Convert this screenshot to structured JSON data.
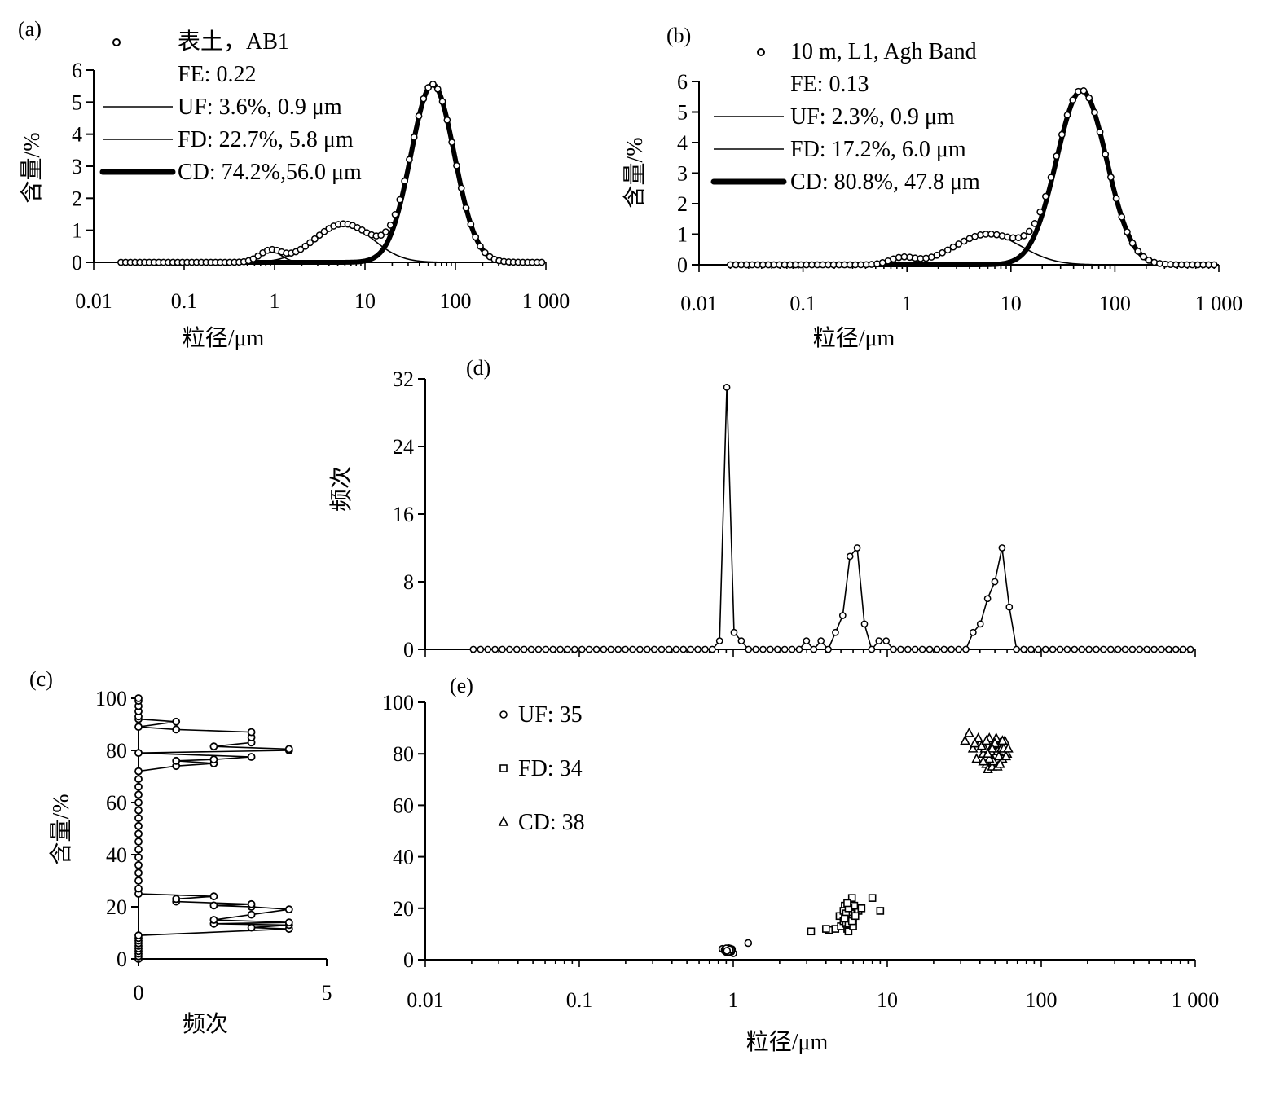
{
  "chart_data": [
    {
      "id": "a",
      "type": "line",
      "panel_label": "(a)",
      "xscale": "log",
      "xlim": [
        0.01,
        1000
      ],
      "ylim": [
        0,
        6
      ],
      "xlabel": "粒径/μm",
      "ylabel": "含量/%",
      "xticks": [
        0.01,
        0.1,
        1,
        10,
        100,
        1000
      ],
      "xtick_labels": [
        "0.01",
        "0.1",
        "1",
        "10",
        "100",
        "1 000"
      ],
      "yticks": [
        0,
        1,
        2,
        3,
        4,
        5,
        6
      ],
      "ytick_labels": [
        "0",
        "1",
        "2",
        "3",
        "4",
        "5",
        "6"
      ],
      "legend": {
        "position": "top-left",
        "entries": [
          {
            "text": "表土，AB1",
            "marker": "circle"
          },
          {
            "text": "FE: 0.22",
            "marker": "none"
          },
          {
            "text": "UF: 3.6%,  0.9 μm",
            "marker": "line"
          },
          {
            "text": "FD: 22.7%,  5.8 μm",
            "marker": "line"
          },
          {
            "text": "CD:  74.2%,56.0 μm",
            "marker": "thick-line"
          }
        ]
      },
      "series": [
        {
          "name": "UF",
          "component": "lognormal",
          "amplitude": 0.35,
          "mode_um": 0.9,
          "sigma_log10": 0.12
        },
        {
          "name": "FD",
          "component": "lognormal",
          "amplitude": 1.2,
          "mode_um": 5.8,
          "sigma_log10": 0.32
        },
        {
          "name": "CD",
          "component": "lognormal",
          "amplitude": 5.55,
          "mode_um": 56.0,
          "sigma_log10": 0.24
        },
        {
          "name": "表土，AB1",
          "component": "measured-sum-of-components",
          "x_range_um": [
            0.02,
            900
          ],
          "points": 90
        }
      ]
    },
    {
      "id": "b",
      "type": "line",
      "panel_label": "(b)",
      "xscale": "log",
      "xlim": [
        0.01,
        1000
      ],
      "ylim": [
        0,
        6
      ],
      "xlabel": "粒径/μm",
      "ylabel": "含量/%",
      "xticks": [
        0.01,
        0.1,
        1,
        10,
        100,
        1000
      ],
      "xtick_labels": [
        "0.01",
        "0.1",
        "1",
        "10",
        "100",
        "1 000"
      ],
      "yticks": [
        0,
        1,
        2,
        3,
        4,
        5,
        6
      ],
      "ytick_labels": [
        "0",
        "1",
        "2",
        "3",
        "4",
        "5",
        "6"
      ],
      "legend": {
        "position": "top-left",
        "entries": [
          {
            "text": "10 m, L1, Agh Band",
            "marker": "circle"
          },
          {
            "text": "FE: 0.13",
            "marker": "none"
          },
          {
            "text": "UF:  2.3%,  0.9  μm",
            "marker": "line"
          },
          {
            "text": "FD:  17.2%,  6.0 μm",
            "marker": "line"
          },
          {
            "text": "CD:  80.8%,  47.8 μm",
            "marker": "thick-line"
          }
        ]
      },
      "series": [
        {
          "name": "UF",
          "component": "lognormal",
          "amplitude": 0.22,
          "mode_um": 0.9,
          "sigma_log10": 0.12
        },
        {
          "name": "FD",
          "component": "lognormal",
          "amplitude": 1.0,
          "mode_um": 6.0,
          "sigma_log10": 0.32
        },
        {
          "name": "CD",
          "component": "lognormal",
          "amplitude": 5.7,
          "mode_um": 47.8,
          "sigma_log10": 0.24
        },
        {
          "name": "10 m, L1, Agh Band",
          "component": "measured-sum-of-components",
          "x_range_um": [
            0.02,
            900
          ],
          "points": 90
        }
      ]
    },
    {
      "id": "c",
      "type": "line",
      "panel_label": "(c)",
      "xlim": [
        0,
        5
      ],
      "ylim": [
        0,
        100
      ],
      "xlabel": "频次",
      "ylabel": "含量/%",
      "xticks": [
        0,
        5
      ],
      "xtick_labels": [
        "0",
        "5"
      ],
      "yticks": [
        0,
        20,
        40,
        60,
        80,
        100
      ],
      "ytick_labels": [
        "0",
        "20",
        "40",
        "60",
        "80",
        "100"
      ],
      "points": [
        [
          0,
          0
        ],
        [
          0,
          1
        ],
        [
          0,
          2
        ],
        [
          0,
          3
        ],
        [
          0,
          4
        ],
        [
          0,
          5
        ],
        [
          0,
          6
        ],
        [
          0,
          7
        ],
        [
          0,
          8
        ],
        [
          0,
          9
        ],
        [
          4,
          11.5
        ],
        [
          3,
          12
        ],
        [
          4,
          13
        ],
        [
          2,
          13.5
        ],
        [
          4,
          14
        ],
        [
          2,
          15
        ],
        [
          3,
          17
        ],
        [
          4,
          19
        ],
        [
          3,
          20
        ],
        [
          2,
          20.5
        ],
        [
          3,
          21
        ],
        [
          1,
          22
        ],
        [
          1,
          23
        ],
        [
          2,
          24
        ],
        [
          0,
          25
        ],
        [
          0,
          27
        ],
        [
          0,
          30
        ],
        [
          0,
          33
        ],
        [
          0,
          36
        ],
        [
          0,
          39
        ],
        [
          0,
          42
        ],
        [
          0,
          45
        ],
        [
          0,
          48
        ],
        [
          0,
          51
        ],
        [
          0,
          54
        ],
        [
          0,
          57
        ],
        [
          0,
          60
        ],
        [
          0,
          63
        ],
        [
          0,
          66
        ],
        [
          0,
          69
        ],
        [
          0,
          72
        ],
        [
          1,
          74
        ],
        [
          2,
          75
        ],
        [
          1,
          76
        ],
        [
          2,
          76.5
        ],
        [
          3,
          77.5
        ],
        [
          0,
          79
        ],
        [
          4,
          80
        ],
        [
          4,
          80.5
        ],
        [
          2,
          81.5
        ],
        [
          3,
          83
        ],
        [
          3,
          85
        ],
        [
          3,
          87
        ],
        [
          1,
          88
        ],
        [
          0,
          89
        ],
        [
          1,
          91
        ],
        [
          0,
          92
        ],
        [
          0,
          93
        ],
        [
          0,
          95
        ],
        [
          0,
          97
        ],
        [
          0,
          99
        ],
        [
          0,
          100
        ]
      ]
    },
    {
      "id": "d",
      "type": "line",
      "panel_label": "(d)",
      "xscale": "log",
      "xlim": [
        0.01,
        1000
      ],
      "ylim": [
        0,
        32
      ],
      "ylabel": "频次",
      "yticks": [
        0,
        8,
        16,
        24,
        32
      ],
      "ytick_labels": [
        "0",
        "8",
        "16",
        "24",
        "32"
      ],
      "x_range_um": [
        0.0205,
        930
      ],
      "points_n": 100,
      "peaks": [
        {
          "x": 0.818,
          "y": 1
        },
        {
          "x": 0.9225,
          "y": 31
        },
        {
          "x": 1.04,
          "y": 2
        },
        {
          "x": 1.16,
          "y": 1
        },
        {
          "x": 3.06,
          "y": 1
        },
        {
          "x": 3.87,
          "y": 1
        },
        {
          "x": 4.37,
          "y": 2
        },
        {
          "x": 4.93,
          "y": 4
        },
        {
          "x": 5.55,
          "y": 11
        },
        {
          "x": 6.23,
          "y": 12
        },
        {
          "x": 7.02,
          "y": 3
        },
        {
          "x": 8.9,
          "y": 1
        },
        {
          "x": 10.0,
          "y": 1
        },
        {
          "x": 36.0,
          "y": 2
        },
        {
          "x": 40.5,
          "y": 3
        },
        {
          "x": 45.5,
          "y": 6
        },
        {
          "x": 51.2,
          "y": 8
        },
        {
          "x": 57.6,
          "y": 12
        },
        {
          "x": 64.8,
          "y": 5
        }
      ]
    },
    {
      "id": "e",
      "type": "scatter",
      "panel_label": "(e)",
      "xscale": "log",
      "xlim": [
        0.01,
        1000
      ],
      "ylim": [
        0,
        100
      ],
      "xlabel": "粒径/μm",
      "xticks": [
        0.01,
        0.1,
        1,
        10,
        100,
        1000
      ],
      "xtick_labels": [
        "0.01",
        "0.1",
        "1",
        "10",
        "100",
        "1 000"
      ],
      "yticks": [
        0,
        20,
        40,
        60,
        80,
        100
      ],
      "ytick_labels": [
        "0",
        "20",
        "40",
        "60",
        "80",
        "100"
      ],
      "legend": {
        "position": "top-left"
      },
      "series": [
        {
          "name": "UF: 35",
          "marker": "circle",
          "points": [
            [
              0.85,
              4.2
            ],
            [
              0.88,
              3.5
            ],
            [
              0.9,
              4.0
            ],
            [
              0.92,
              3.2
            ],
            [
              0.93,
              4.5
            ],
            [
              0.94,
              3.8
            ],
            [
              0.95,
              2.8
            ],
            [
              0.96,
              3.6
            ],
            [
              0.98,
              4.1
            ],
            [
              1.0,
              2.5
            ],
            [
              1.25,
              6.5
            ],
            [
              0.9,
              3.0
            ],
            [
              0.92,
              4.0
            ],
            [
              0.94,
              3.4
            ],
            [
              0.96,
              4.3
            ],
            [
              0.88,
              4.0
            ],
            [
              0.91,
              3.9
            ],
            [
              0.95,
              4.2
            ],
            [
              0.97,
              3.1
            ],
            [
              0.93,
              3.7
            ],
            [
              0.9,
              3.3
            ],
            [
              0.94,
              4.4
            ],
            [
              0.92,
              2.9
            ],
            [
              0.96,
              3.5
            ],
            [
              0.89,
              3.6
            ],
            [
              0.93,
              3.9
            ],
            [
              0.95,
              3.3
            ],
            [
              0.91,
              4.1
            ],
            [
              0.94,
              3.0
            ],
            [
              0.92,
              3.8
            ],
            [
              0.9,
              4.4
            ],
            [
              0.97,
              3.9
            ],
            [
              0.93,
              3.1
            ],
            [
              0.95,
              4.0
            ],
            [
              0.91,
              3.5
            ]
          ]
        },
        {
          "name": "FD: 34",
          "marker": "square",
          "points": [
            [
              3.2,
              11.0
            ],
            [
              4.2,
              11.5
            ],
            [
              4.6,
              12.0
            ],
            [
              4.9,
              17.0
            ],
            [
              5.0,
              13.0
            ],
            [
              5.2,
              15.0
            ],
            [
              5.4,
              14.0
            ],
            [
              5.5,
              12.0
            ],
            [
              5.6,
              11.0
            ],
            [
              5.7,
              19.0
            ],
            [
              5.8,
              21.0
            ],
            [
              5.9,
              24.0
            ],
            [
              6.0,
              16.0
            ],
            [
              6.1,
              18.0
            ],
            [
              6.3,
              20.0
            ],
            [
              6.5,
              19.0
            ],
            [
              6.8,
              20.0
            ],
            [
              8.0,
              24.0
            ],
            [
              9.0,
              19.0
            ],
            [
              5.3,
              21.0
            ],
            [
              5.5,
              17.0
            ],
            [
              5.6,
              14.0
            ],
            [
              5.8,
              18.0
            ],
            [
              6.0,
              13.0
            ],
            [
              5.2,
              19.0
            ],
            [
              5.7,
              16.0
            ],
            [
              6.1,
              21.0
            ],
            [
              5.4,
              18.0
            ],
            [
              5.9,
              15.0
            ],
            [
              5.6,
              20.0
            ],
            [
              6.2,
              17.0
            ],
            [
              5.3,
              16.0
            ],
            [
              5.5,
              22.0
            ],
            [
              4.0,
              12.0
            ]
          ]
        },
        {
          "name": "CD: 38",
          "marker": "triangle",
          "points": [
            [
              32,
              85.0
            ],
            [
              34,
              88.0
            ],
            [
              36,
              82.0
            ],
            [
              38,
              78.0
            ],
            [
              40,
              84.0
            ],
            [
              42,
              80.0
            ],
            [
              44,
              76.0
            ],
            [
              46,
              86.0
            ],
            [
              48,
              83.0
            ],
            [
              50,
              79.0
            ],
            [
              52,
              81.0
            ],
            [
              54,
              84.0
            ],
            [
              56,
              78.0
            ],
            [
              58,
              85.0
            ],
            [
              60,
              80.0
            ],
            [
              45,
              74.0
            ],
            [
              48,
              75.0
            ],
            [
              52,
              75.0
            ],
            [
              43,
              82.0
            ],
            [
              47,
              81.0
            ],
            [
              55,
              82.0
            ],
            [
              39,
              86.0
            ],
            [
              49,
              77.0
            ],
            [
              53,
              79.0
            ],
            [
              57,
              82.0
            ],
            [
              41,
              83.0
            ],
            [
              44,
              85.0
            ],
            [
              51,
              86.0
            ],
            [
              46,
              78.0
            ],
            [
              50,
              84.0
            ],
            [
              54,
              76.0
            ],
            [
              59,
              79.0
            ],
            [
              42,
              77.0
            ],
            [
              48,
              82.0
            ],
            [
              56,
              85.0
            ],
            [
              45,
              80.0
            ],
            [
              37,
              84.0
            ],
            [
              61,
              82.0
            ]
          ]
        }
      ]
    }
  ]
}
